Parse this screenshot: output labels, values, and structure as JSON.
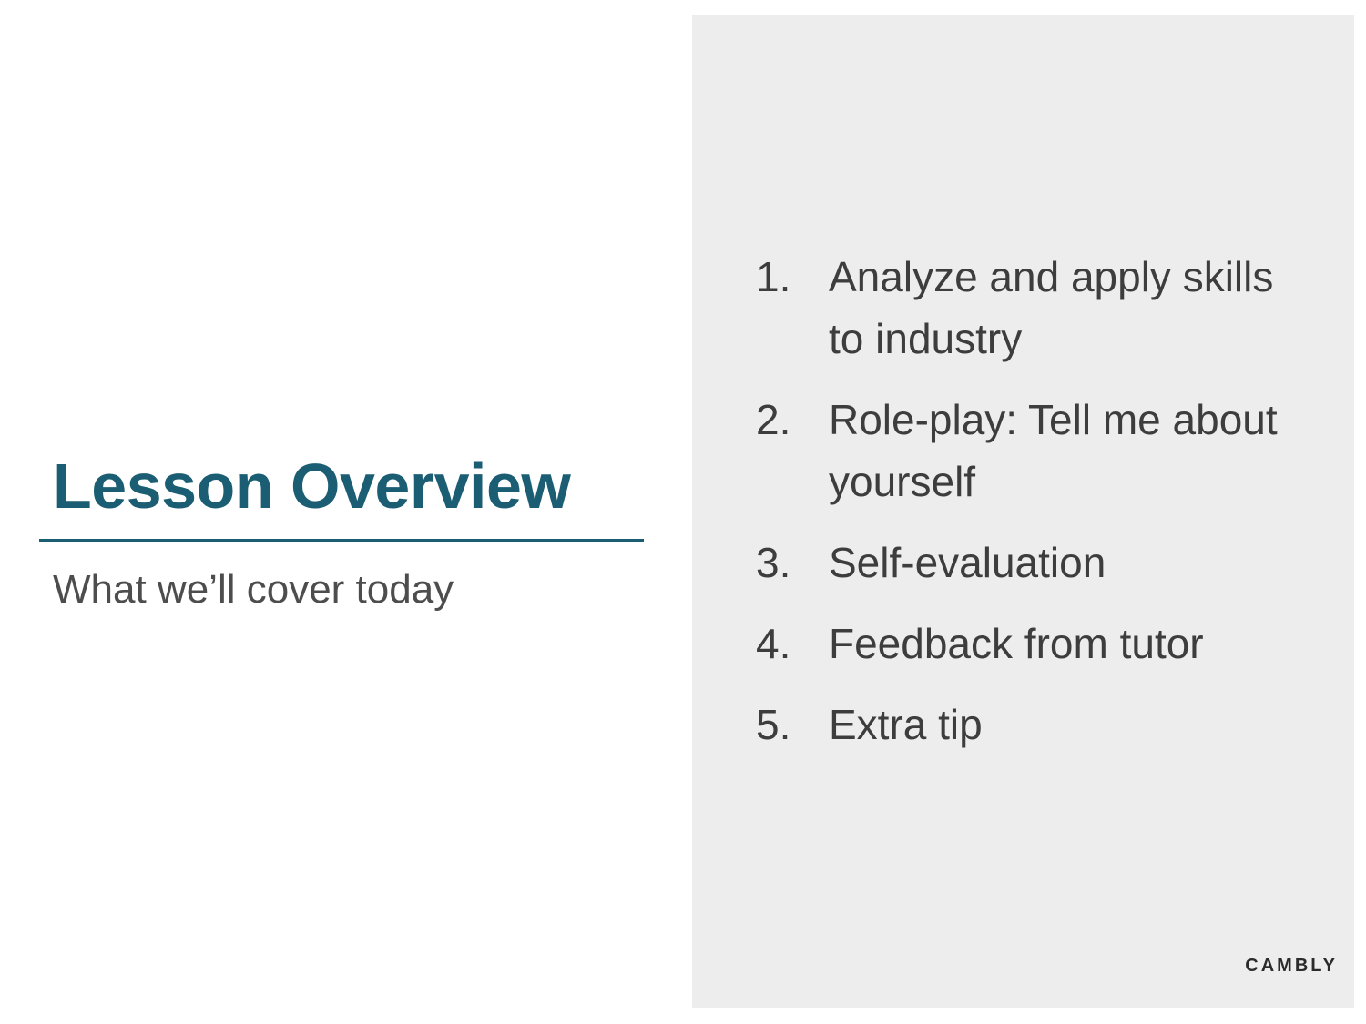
{
  "slide": {
    "title": "Lesson Overview",
    "subtitle": "What we’ll cover today",
    "agenda": [
      {
        "number": "1.",
        "text": "Analyze and apply skills to industry"
      },
      {
        "number": "2.",
        "text": "Role-play: Tell me about yourself"
      },
      {
        "number": "3.",
        "text": "Self-evaluation"
      },
      {
        "number": "4.",
        "text": "Feedback from tutor"
      },
      {
        "number": "5.",
        "text": "Extra tip"
      }
    ],
    "brand": "CAMBLY"
  },
  "colors": {
    "accent": "#1b5e74",
    "panel_background": "#ededed",
    "body_text": "#3d3d3d"
  }
}
